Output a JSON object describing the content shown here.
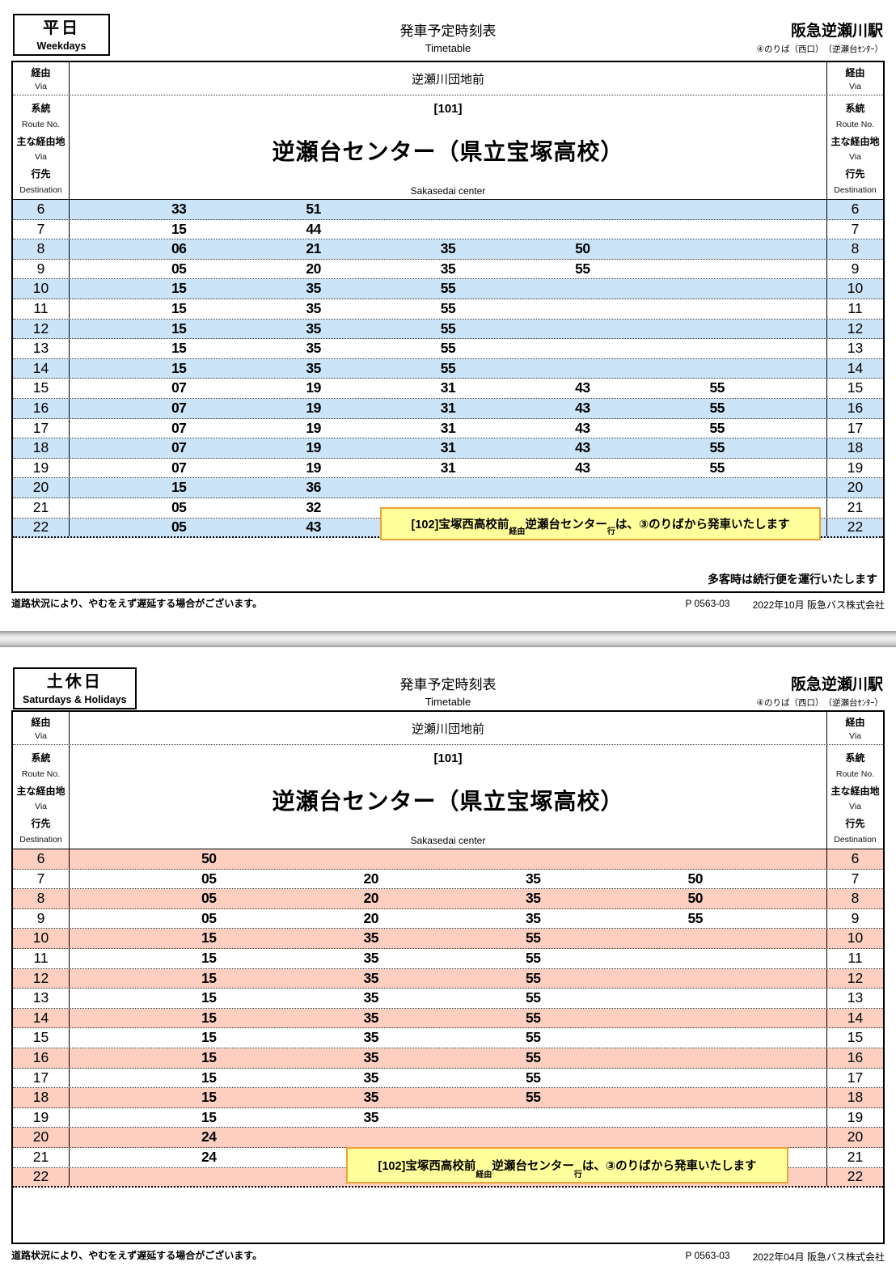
{
  "shared": {
    "title": "発車予定時刻表",
    "title_en": "Timetable",
    "station": "阪急逆瀬川駅",
    "station_sub": "④のりば（西口）　（逆瀬台ｾﾝﾀｰ）",
    "via_value": "逆瀬川団地前",
    "route_no": "[101]",
    "destination": "逆瀬台センター（県立宝塚高校）",
    "destination_en": "Sakasedai center",
    "labels": {
      "via": "経由",
      "via_en": "Via",
      "route": "系統",
      "route_en": "Route No.",
      "main_via": "主な経由地",
      "main_via_en": "Via",
      "dest": "行先",
      "dest_en": "Destination"
    },
    "route_note": {
      "p1": "[102]宝塚西高校前",
      "p2": "経由",
      "p3": " 逆瀬台センター",
      "p4": "行",
      "p5": " は、③のりばから発車いたします"
    },
    "footer_left": "道路状況により、やむをえず遅延する場合がございます。",
    "footer_code": "P 0563-03"
  },
  "colors": {
    "weekday_row_tint": "#cbe4f8",
    "holiday_row_tint": "#fccfc0",
    "note_bg": "#ffff9c",
    "note_border": "#f0a132"
  },
  "weekday": {
    "day_label": "平日",
    "day_label_en": "Weekdays",
    "crowd_note": "多客時は続行便を運行いたします",
    "footer_right": "2022年10月 阪急バス株式会社",
    "columns": 5,
    "rows": [
      {
        "hour": "6",
        "minutes": [
          "33",
          "51"
        ]
      },
      {
        "hour": "7",
        "minutes": [
          "15",
          "44"
        ]
      },
      {
        "hour": "8",
        "minutes": [
          "06",
          "21",
          "35",
          "50"
        ]
      },
      {
        "hour": "9",
        "minutes": [
          "05",
          "20",
          "35",
          "55"
        ]
      },
      {
        "hour": "10",
        "minutes": [
          "15",
          "35",
          "55"
        ]
      },
      {
        "hour": "11",
        "minutes": [
          "15",
          "35",
          "55"
        ]
      },
      {
        "hour": "12",
        "minutes": [
          "15",
          "35",
          "55"
        ]
      },
      {
        "hour": "13",
        "minutes": [
          "15",
          "35",
          "55"
        ]
      },
      {
        "hour": "14",
        "minutes": [
          "15",
          "35",
          "55"
        ]
      },
      {
        "hour": "15",
        "minutes": [
          "07",
          "19",
          "31",
          "43",
          "55"
        ]
      },
      {
        "hour": "16",
        "minutes": [
          "07",
          "19",
          "31",
          "43",
          "55"
        ]
      },
      {
        "hour": "17",
        "minutes": [
          "07",
          "19",
          "31",
          "43",
          "55"
        ]
      },
      {
        "hour": "18",
        "minutes": [
          "07",
          "19",
          "31",
          "43",
          "55"
        ]
      },
      {
        "hour": "19",
        "minutes": [
          "07",
          "19",
          "31",
          "43",
          "55"
        ]
      },
      {
        "hour": "20",
        "minutes": [
          "15",
          "36"
        ]
      },
      {
        "hour": "21",
        "minutes": [
          "05",
          "32"
        ]
      },
      {
        "hour": "22",
        "minutes": [
          "05",
          "43"
        ]
      }
    ]
  },
  "holiday": {
    "day_label": "土休日",
    "day_label_en": "Saturdays & Holidays",
    "footer_right": "2022年04月 阪急バス株式会社",
    "columns": 4,
    "rows": [
      {
        "hour": "6",
        "minutes": [
          "50"
        ]
      },
      {
        "hour": "7",
        "minutes": [
          "05",
          "20",
          "35",
          "50"
        ]
      },
      {
        "hour": "8",
        "minutes": [
          "05",
          "20",
          "35",
          "50"
        ]
      },
      {
        "hour": "9",
        "minutes": [
          "05",
          "20",
          "35",
          "55"
        ]
      },
      {
        "hour": "10",
        "minutes": [
          "15",
          "35",
          "55"
        ]
      },
      {
        "hour": "11",
        "minutes": [
          "15",
          "35",
          "55"
        ]
      },
      {
        "hour": "12",
        "minutes": [
          "15",
          "35",
          "55"
        ]
      },
      {
        "hour": "13",
        "minutes": [
          "15",
          "35",
          "55"
        ]
      },
      {
        "hour": "14",
        "minutes": [
          "15",
          "35",
          "55"
        ]
      },
      {
        "hour": "15",
        "minutes": [
          "15",
          "35",
          "55"
        ]
      },
      {
        "hour": "16",
        "minutes": [
          "15",
          "35",
          "55"
        ]
      },
      {
        "hour": "17",
        "minutes": [
          "15",
          "35",
          "55"
        ]
      },
      {
        "hour": "18",
        "minutes": [
          "15",
          "35",
          "55"
        ]
      },
      {
        "hour": "19",
        "minutes": [
          "15",
          "35"
        ]
      },
      {
        "hour": "20",
        "minutes": [
          "24"
        ]
      },
      {
        "hour": "21",
        "minutes": [
          "24"
        ]
      },
      {
        "hour": "22",
        "minutes": []
      }
    ]
  }
}
